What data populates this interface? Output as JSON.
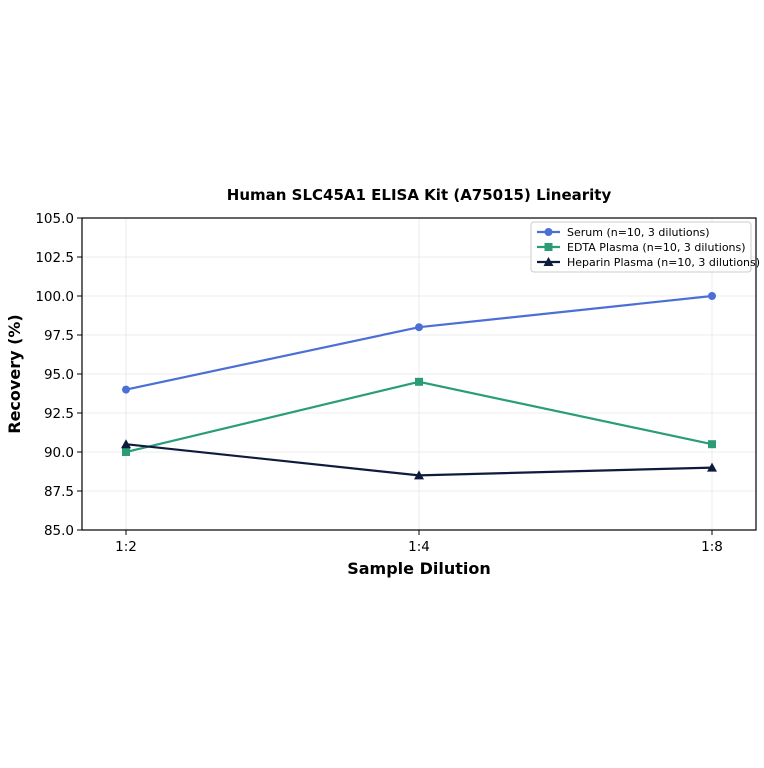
{
  "chart_data": {
    "type": "line",
    "title": "Human SLC45A1 ELISA Kit (A75015) Linearity",
    "xlabel": "Sample Dilution",
    "ylabel": "Recovery (%)",
    "categories": [
      "1:2",
      "1:4",
      "1:8"
    ],
    "ylim": [
      85.0,
      105.0
    ],
    "yticks": [
      "85.0",
      "87.5",
      "90.0",
      "92.5",
      "95.0",
      "97.5",
      "100.0",
      "102.5",
      "105.0"
    ],
    "grid": true,
    "legend_position": "top-right",
    "series": [
      {
        "name": "Serum (n=10, 3 dilutions)",
        "values": [
          94.0,
          98.0,
          100.0
        ],
        "color": "#4c6fd6",
        "marker": "circle"
      },
      {
        "name": "EDTA Plasma (n=10, 3 dilutions)",
        "values": [
          90.0,
          94.5,
          90.5
        ],
        "color": "#2a9d78",
        "marker": "square"
      },
      {
        "name": "Heparin Plasma (n=10, 3 dilutions)",
        "values": [
          90.5,
          88.5,
          89.0
        ],
        "color": "#0f1b3d",
        "marker": "triangle"
      }
    ]
  }
}
